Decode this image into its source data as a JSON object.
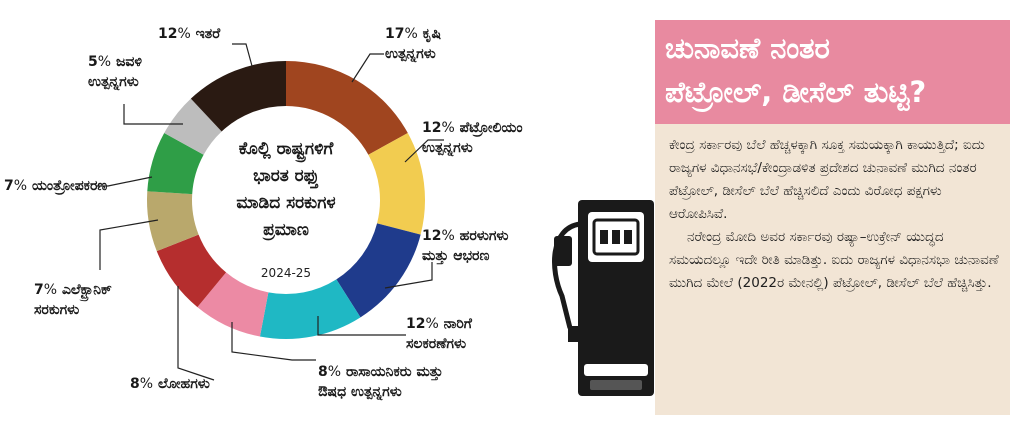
{
  "chart_data": {
    "type": "donut",
    "title": "ಕೊಲ್ಲಿ ರಾಷ್ಟ್ರಗಳಿಗೆ ಭಾರತ ರಫ್ತು ಮಾಡಿದ ಸರಕುಗಳ ಪ್ರಮಾಣ",
    "subtitle": "2024-25",
    "unit": "%",
    "segments": [
      {
        "pct": 17,
        "label": "ಕೃಷಿ ಉತ್ಪನ್ನಗಳು",
        "color": "#a0451f"
      },
      {
        "pct": 12,
        "label": "ಪೆಟ್ರೋಲಿಯಂ ಉತ್ಪನ್ನಗಳು",
        "color": "#f2cc50"
      },
      {
        "pct": 12,
        "label": "ಹರಳುಗಳು ಮತ್ತು ಆಭರಣ",
        "color": "#1f3b8c"
      },
      {
        "pct": 12,
        "label": "ನಾರಿಗೆ ಸಲಕರಣೆಗಳು",
        "color": "#1fb8c4"
      },
      {
        "pct": 8,
        "label": "ರಾಸಾಯನಿಕರು ಮತ್ತು ಔಷಧ ಉತ್ಪನ್ನಗಳು",
        "color": "#ec8aa4"
      },
      {
        "pct": 8,
        "label": "ಲೋಹಗಳು",
        "color": "#b52e2e"
      },
      {
        "pct": 7,
        "label": "ಎಲೆಕ್ಟ್ರಾನಿಕ್ ಸರಕುಗಳು",
        "color": "#b9a86c"
      },
      {
        "pct": 7,
        "label": "ಯಂತ್ರೋಪಕರಣ",
        "color": "#2f9e47"
      },
      {
        "pct": 5,
        "label": "ಜವಳಿ ಉತ್ಪನ್ನಗಳು",
        "color": "#bdbdbd"
      },
      {
        "pct": 12,
        "label": "ಇತರೆ",
        "color": "#2a1a12"
      }
    ]
  },
  "labels": {
    "agri": {
      "pct": "17",
      "line1": "ಕೃಷಿ",
      "line2": "ಉತ್ಪನ್ನಗಳು"
    },
    "petro": {
      "pct": "12",
      "line1": "ಪೆಟ್ರೋಲಿಯಂ",
      "line2": "ಉತ್ಪನ್ನಗಳು"
    },
    "gems": {
      "pct": "12",
      "line1": "ಹರಳುಗಳು",
      "line2": "ಮತ್ತು ಆಭರಣ"
    },
    "transport": {
      "pct": "12",
      "line1": "ನಾರಿಗೆ",
      "line2": "ಸಲಕರಣೆಗಳು"
    },
    "chem": {
      "pct": "8",
      "line1": "ರಾಸಾಯನಿಕರು ಮತ್ತು",
      "line2": "ಔಷಧ ಉತ್ಪನ್ನಗಳು"
    },
    "metals": {
      "pct": "8",
      "line1": "ಲೋಹಗಳು"
    },
    "elec": {
      "pct": "7",
      "line1": "ಎಲೆಕ್ಟ್ರಾನಿಕ್",
      "line2": "ಸರಕುಗಳು"
    },
    "machinery": {
      "pct": "7",
      "line1": "ಯಂತ್ರೋಪಕರಣ"
    },
    "textile": {
      "pct": "5",
      "line1": "ಜವಳಿ",
      "line2": "ಉತ್ಪನ್ನಗಳು"
    },
    "others": {
      "pct": "12",
      "line1": "ಇತರೆ"
    }
  },
  "center": {
    "line1": "ಕೊಲ್ಲಿ ರಾಷ್ಟ್ರಗಳಿಗೆ",
    "line2": "ಭಾರತ ರಫ್ತು",
    "line3": "ಮಾಡಿದ ಸರಕುಗಳ",
    "line4": "ಪ್ರಮಾಣ",
    "year": "2024-25"
  },
  "article": {
    "headline_line1": "ಚುನಾವಣೆ ನಂತರ",
    "headline_line2": "ಪೆಟ್ರೋಲ್, ಡೀಸೆಲ್ ತುಟ್ಟಿ?",
    "para1": "ಕೇಂದ್ರ ಸರ್ಕಾರವು ಬೆಲೆ ಹೆಚ್ಚಳಕ್ಕಾಗಿ ಸೂಕ್ತ ಸಮಯಕ್ಕಾಗಿ ಕಾಯುತ್ತಿದೆ; ಐದು ರಾಜ್ಯಗಳ ವಿಧಾನಸಭೆ/ಕೇಂದ್ರಾಡಳಿತ ಪ್ರದೇಶದ ಚುನಾವಣೆ ಮುಗಿದ ನಂತರ ಪೆಟ್ರೋಲ್, ಡೀಸೆಲ್ ಬೆಲೆ ಹೆಚ್ಚಿಸಲಿದೆ ಎಂದು ವಿರೋಧ ಪಕ್ಷಗಳು ಆರೋಪಿಸಿವೆ.",
    "para2": "ನರೇಂದ್ರ ಮೋದಿ ಅವರ ಸರ್ಕಾರವು ರಷ್ಯಾ–ಉಕ್ರೇನ್ ಯುದ್ಧದ ಸಮಯದಲ್ಲೂ ಇದೇ ರೀತಿ ಮಾಡಿತ್ತು. ಐದು ರಾಜ್ಯಗಳ ವಿಧಾನಸಭಾ ಚುನಾವಣೆ ಮುಗಿದ ಮೇಲೆ (2022ರ ಮೇನಲ್ಲಿ) ಪೆಟ್ರೋಲ್, ಡೀಸೆಲ್ ಬೆಲೆ ಹೆಚ್ಚಿಸಿತ್ತು."
  }
}
